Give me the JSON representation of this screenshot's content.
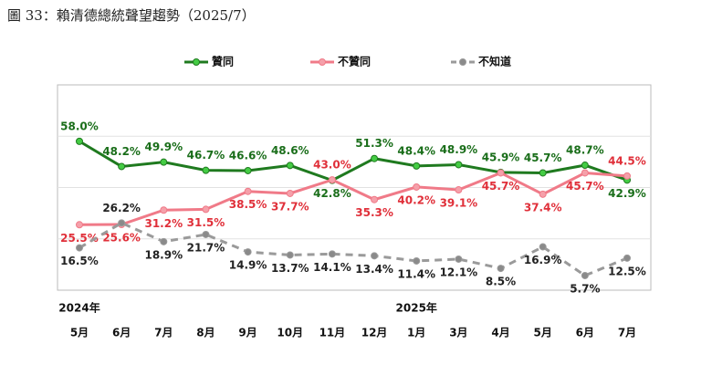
{
  "chart_data": {
    "type": "line",
    "title": "圖 33：賴清德總統聲望趨勢（2025/7）",
    "categories": [
      "5月",
      "6月",
      "7月",
      "8月",
      "9月",
      "10月",
      "11月",
      "12月",
      "1月",
      "3月",
      "4月",
      "5月",
      "6月",
      "7月"
    ],
    "year_labels": [
      {
        "index": 0,
        "label": "2024年"
      },
      {
        "index": 8,
        "label": "2025年"
      }
    ],
    "ylim": [
      0,
      80
    ],
    "yticks": [
      0,
      20,
      40,
      60,
      80
    ],
    "grid": true,
    "legend": "top",
    "series": [
      {
        "name": "贊同",
        "color": "#1f7a1f",
        "marker_color": "#44cc44",
        "dashed": false,
        "values": [
          58.0,
          48.2,
          49.9,
          46.7,
          46.6,
          48.6,
          42.8,
          51.3,
          48.4,
          48.9,
          45.9,
          45.7,
          48.7,
          42.9
        ],
        "value_labels": [
          "58.0%",
          "48.2%",
          "49.9%",
          "46.7%",
          "46.6%",
          "48.6%",
          "42.8%",
          "51.3%",
          "48.4%",
          "48.9%",
          "45.9%",
          "45.7%",
          "48.7%",
          "42.9%"
        ]
      },
      {
        "name": "不贊同",
        "color": "#f07a88",
        "marker_color": "#f5a0aa",
        "dashed": false,
        "values": [
          25.5,
          25.6,
          31.2,
          31.5,
          38.5,
          37.7,
          43.0,
          35.3,
          40.2,
          39.1,
          45.7,
          37.4,
          45.7,
          44.5
        ],
        "value_labels": [
          "25.5%",
          "25.6%",
          "31.2%",
          "31.5%",
          "38.5%",
          "37.7%",
          "43.0%",
          "35.3%",
          "40.2%",
          "39.1%",
          "45.7%",
          "37.4%",
          "45.7%",
          "44.5%"
        ]
      },
      {
        "name": "不知道",
        "color": "#9a9a9a",
        "marker_color": "#8a8a8a",
        "dashed": true,
        "values": [
          16.5,
          26.2,
          18.9,
          21.7,
          14.9,
          13.7,
          14.1,
          13.4,
          11.4,
          12.1,
          8.5,
          16.9,
          5.7,
          12.5
        ],
        "value_labels": [
          "16.5%",
          "26.2%",
          "18.9%",
          "21.7%",
          "14.9%",
          "13.7%",
          "14.1%",
          "13.4%",
          "11.4%",
          "12.1%",
          "8.5%",
          "16.9%",
          "5.7%",
          "12.5%"
        ]
      }
    ]
  }
}
